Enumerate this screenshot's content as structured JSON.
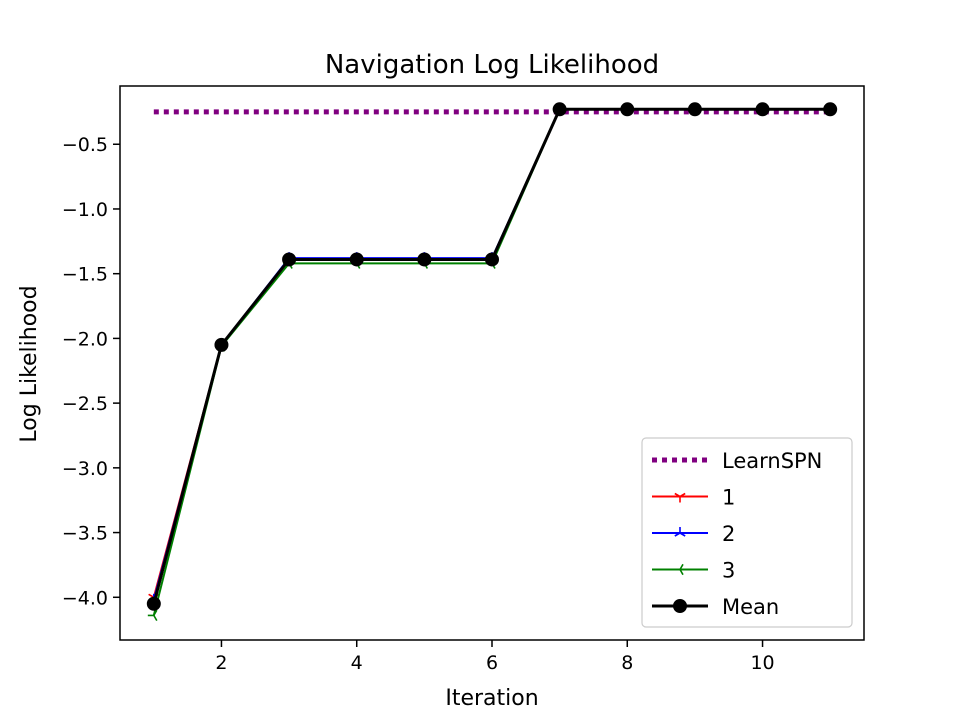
{
  "chart_data": {
    "type": "line",
    "title": "Navigation Log Likelihood",
    "xlabel": "Iteration",
    "ylabel": "Log Likelihood",
    "xlim": [
      0.5,
      11.5
    ],
    "ylim": [
      -4.33,
      -0.05
    ],
    "xticks": [
      2,
      4,
      6,
      8,
      10
    ],
    "yticks": [
      -0.5,
      -1.0,
      -1.5,
      -2.0,
      -2.5,
      -3.0,
      -3.5,
      -4.0
    ],
    "xtick_labels": [
      "2",
      "4",
      "6",
      "8",
      "10"
    ],
    "ytick_labels": [
      "−0.5",
      "−1.0",
      "−1.5",
      "−2.0",
      "−2.5",
      "−3.0",
      "−3.5",
      "−4.0"
    ],
    "grid": false,
    "legend_position": "lower-right",
    "x": [
      1,
      2,
      3,
      4,
      5,
      6,
      7,
      8,
      9,
      10,
      11
    ],
    "series": [
      {
        "name": "LearnSPN",
        "style": "dotted",
        "color": "#800080",
        "marker": "none",
        "x": [
          1,
          11
        ],
        "values": [
          -0.25,
          -0.25
        ]
      },
      {
        "name": "1",
        "style": "solid",
        "color": "#ff0000",
        "marker": "tri_down",
        "values": [
          -4.0,
          -2.05,
          -1.39,
          -1.39,
          -1.39,
          -1.39,
          -0.23,
          -0.23,
          -0.23,
          -0.23,
          -0.23
        ]
      },
      {
        "name": "2",
        "style": "solid",
        "color": "#0000ff",
        "marker": "tri_up",
        "values": [
          -4.02,
          -2.05,
          -1.38,
          -1.38,
          -1.38,
          -1.38,
          -0.23,
          -0.23,
          -0.23,
          -0.23,
          -0.23
        ]
      },
      {
        "name": "3",
        "style": "solid",
        "color": "#008000",
        "marker": "tri_left",
        "values": [
          -4.14,
          -2.06,
          -1.42,
          -1.42,
          -1.42,
          -1.42,
          -0.23,
          -0.23,
          -0.23,
          -0.23,
          -0.23
        ]
      },
      {
        "name": "Mean",
        "style": "solid",
        "color": "#000000",
        "marker": "circle",
        "values": [
          -4.05,
          -2.05,
          -1.39,
          -1.39,
          -1.39,
          -1.39,
          -0.23,
          -0.23,
          -0.23,
          -0.23,
          -0.23
        ]
      }
    ]
  }
}
